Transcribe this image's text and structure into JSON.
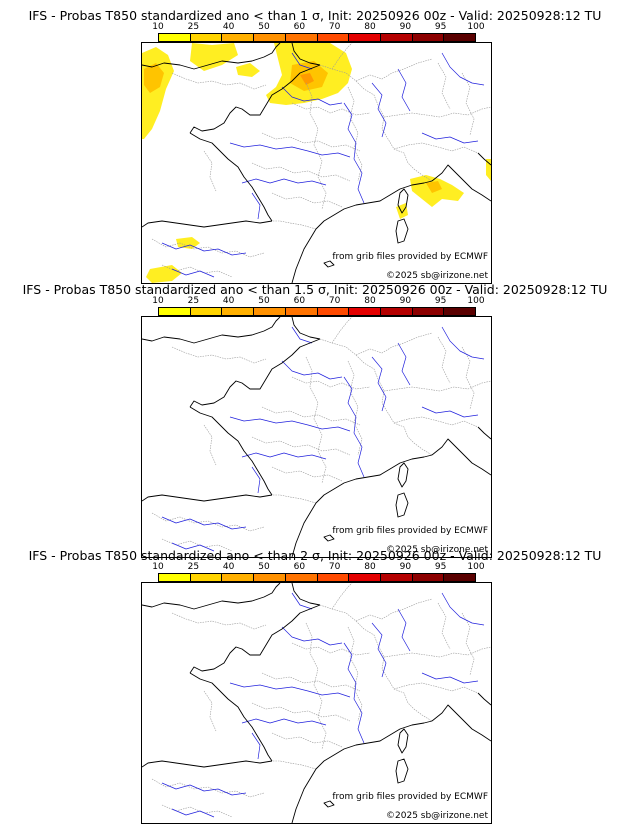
{
  "colors": {
    "scale": [
      "#ffff00",
      "#ffd400",
      "#ffb000",
      "#ff9100",
      "#ff7300",
      "#ff4a00",
      "#e30000",
      "#b40000",
      "#8c0000",
      "#5a0000"
    ],
    "coast": "#000000",
    "borders": "#9a9a9a",
    "rivers": "#2222dd",
    "prob_low": "#ffee22",
    "prob_mid": "#ffc400",
    "prob_high": "#ff9a00"
  },
  "scale_labels": [
    "10",
    "25",
    "40",
    "50",
    "60",
    "70",
    "80",
    "90",
    "95",
    "100"
  ],
  "panels": [
    {
      "title": "IFS - Probas T850  standardized ano < than 1 σ, Init: 20250926 00z - Valid: 20250928:12 TU",
      "credit": "from grib files provided by ECMWF",
      "copyright": "©2025 sb@irizone.net",
      "has_anomaly": true
    },
    {
      "title": "IFS - Probas T850  standardized ano < than 1.5 σ, Init: 20250926 00z - Valid: 20250928:12 TU",
      "credit": "from grib files provided by ECMWF",
      "copyright": "©2025 sb@irizone.net",
      "has_anomaly": false
    },
    {
      "title": "IFS - Probas T850  standardized ano < than 2 σ, Init: 20250926 00z - Valid: 20250928:12 TU",
      "credit": "from grib files provided by ECMWF",
      "copyright": "©2025 sb@irizone.net",
      "has_anomaly": false
    }
  ]
}
